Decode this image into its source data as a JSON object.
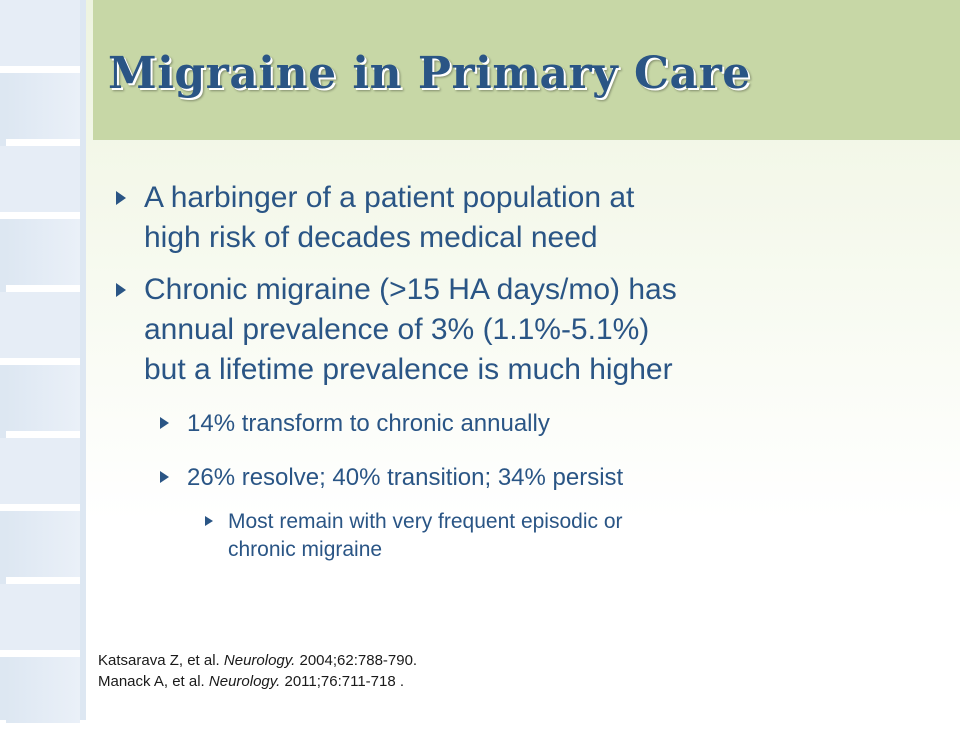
{
  "title": "Migraine in Primary Care",
  "bullets": [
    {
      "lines": [
        "A harbinger of a patient population at",
        "high risk of decades medical need"
      ]
    },
    {
      "lines": [
        "Chronic migraine (>15 HA days/mo) has",
        "annual prevalence of 3% (1.1%-5.1%)",
        "but a lifetime prevalence is much higher"
      ]
    }
  ],
  "sub_bullets": [
    "14% transform to chronic annually",
    "26% resolve; 40% transition; 34% persist"
  ],
  "sub_sub_bullet": {
    "lines": [
      "Most remain with very frequent episodic or",
      "chronic migraine"
    ]
  },
  "references": [
    {
      "authors": "Katsarava Z, et al. ",
      "journal": "Neurology.",
      "details": " 2004;62:788-790."
    },
    {
      "authors": "Manack A, et al. ",
      "journal": "Neurology.",
      "details": " 2011;76:711-718 ."
    }
  ]
}
